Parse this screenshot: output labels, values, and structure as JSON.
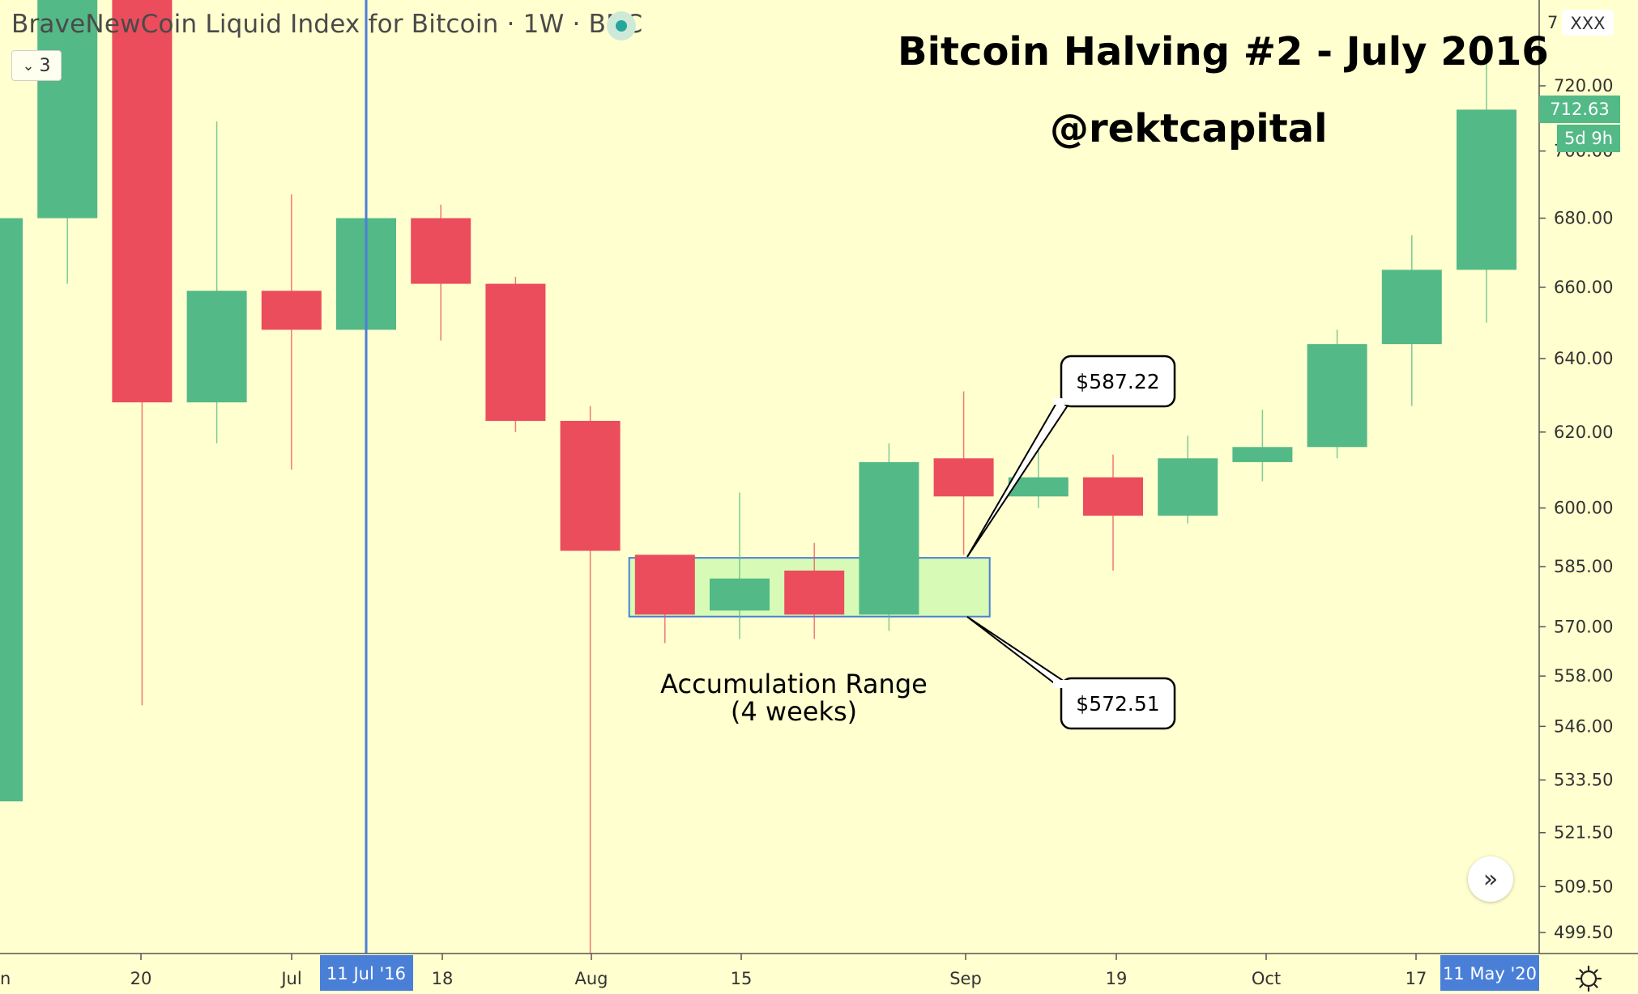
{
  "legend": {
    "title": "BraveNewCoin Liquid Index for Bitcoin · 1W · BNC",
    "collapse_count": "3"
  },
  "headline": "Bitcoin Halving #2 - July 2016",
  "handle": "@rektcapital",
  "annotations": {
    "range_label_line1": "Accumulation Range",
    "range_label_line2": "(4 weeks)",
    "upper_price": "$587.22",
    "lower_price": "$572.51"
  },
  "price_axis": {
    "ticks": [
      "720.00",
      "700.00",
      "680.00",
      "660.00",
      "640.00",
      "620.00",
      "600.00",
      "585.00",
      "570.00",
      "558.00",
      "546.00",
      "533.50",
      "521.50",
      "509.50",
      "499.50"
    ],
    "top_partial": "7",
    "symbol_badge": "XXX",
    "last_price": "712.63",
    "countdown": "5d 9h"
  },
  "time_axis": {
    "labels": [
      "20",
      "Jul",
      "18",
      "Aug",
      "15",
      "Sep",
      "19",
      "Oct",
      "17"
    ],
    "left_partial": "n",
    "crosshair_label": "11 Jul '16",
    "last_date_label": "11 May '20"
  },
  "colors": {
    "background": "#FFFFCF",
    "up": "#53B987",
    "down": "#EB4D5C",
    "crosshair": "#4A7FD8",
    "range_fill": "#D7FBB6"
  },
  "chart_data": {
    "type": "candlestick",
    "title": "BraveNewCoin Liquid Index for Bitcoin · 1W · BNC",
    "interval": "1W",
    "y_scale": "log",
    "ylim": [
      495,
      735
    ],
    "candles": [
      {
        "label": "2016-05-30",
        "open": 528.6,
        "high": 700,
        "low": 520,
        "close": 680
      },
      {
        "label": "2016-06-06",
        "open": 680,
        "high": 790,
        "low": 661,
        "close": 780
      },
      {
        "label": "2016-06-13",
        "open": 770,
        "high": 780,
        "low": 551,
        "close": 628
      },
      {
        "label": "2016-06-20",
        "open": 628,
        "high": 709,
        "low": 617,
        "close": 659
      },
      {
        "label": "2016-06-27",
        "open": 659,
        "high": 687,
        "low": 610,
        "close": 648
      },
      {
        "label": "2016-07-04",
        "open": 648,
        "high": 683,
        "low": 640,
        "close": 680
      },
      {
        "label": "2016-07-11",
        "open": 680,
        "high": 684,
        "low": 645,
        "close": 661
      },
      {
        "label": "2016-07-18",
        "open": 661,
        "high": 663,
        "low": 620,
        "close": 623
      },
      {
        "label": "2016-07-25",
        "open": 623,
        "high": 627,
        "low": 495,
        "close": 589
      },
      {
        "label": "2016-08-01",
        "open": 588,
        "high": 588,
        "low": 566,
        "close": 573
      },
      {
        "label": "2016-08-08",
        "open": 574,
        "high": 604,
        "low": 567,
        "close": 582
      },
      {
        "label": "2016-08-15",
        "open": 584,
        "high": 591,
        "low": 567,
        "close": 573
      },
      {
        "label": "2016-08-22",
        "open": 573,
        "high": 617,
        "low": 569,
        "close": 612
      },
      {
        "label": "2016-08-29",
        "open": 613,
        "high": 631,
        "low": 588,
        "close": 603
      },
      {
        "label": "2016-09-05",
        "open": 603,
        "high": 615,
        "low": 600,
        "close": 608
      },
      {
        "label": "2016-09-12",
        "open": 608,
        "high": 614,
        "low": 584,
        "close": 598
      },
      {
        "label": "2016-09-19",
        "open": 598,
        "high": 619,
        "low": 596,
        "close": 613
      },
      {
        "label": "2016-09-26",
        "open": 612,
        "high": 626,
        "low": 607,
        "close": 616
      },
      {
        "label": "2016-10-03",
        "open": 616,
        "high": 648,
        "low": 613,
        "close": 644
      },
      {
        "label": "2016-10-10",
        "open": 644,
        "high": 675,
        "low": 627,
        "close": 665
      },
      {
        "label": "2016-10-17",
        "open": 665,
        "high": 730,
        "low": 650,
        "close": 712.63
      }
    ],
    "accumulation_range": {
      "from": "2016-08-01",
      "to": "2016-08-29",
      "high": 587.22,
      "low": 572.51,
      "weeks": 4
    },
    "halving_marker": "2016-07-11"
  }
}
